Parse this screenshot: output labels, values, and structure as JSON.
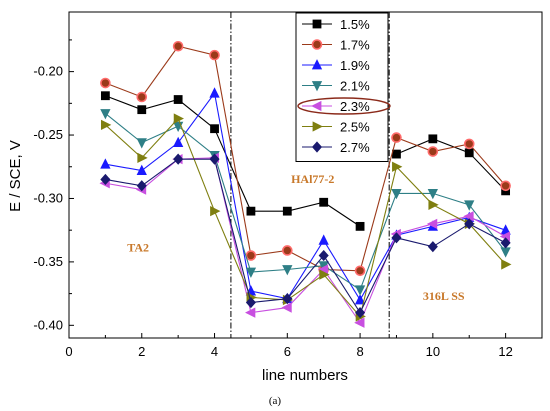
{
  "chart_data": {
    "type": "line",
    "title": "",
    "xlabel": "line numbers",
    "ylabel": "E / SCE, V",
    "xlim": [
      0,
      13
    ],
    "ylim": [
      -0.41,
      -0.153
    ],
    "x_ticks": [
      0,
      2,
      4,
      6,
      8,
      10,
      12
    ],
    "y_ticks": [
      -0.4,
      -0.35,
      -0.3,
      -0.25,
      -0.2
    ],
    "x_tick_labels": [
      "0",
      "2",
      "4",
      "6",
      "8",
      "10",
      "12"
    ],
    "y_tick_labels": [
      "-0.40",
      "-0.35",
      "-0.30",
      "-0.25",
      "-0.20"
    ],
    "grid": false,
    "legend_position": "top-center",
    "divider_lines_x": [
      4.45,
      8.8
    ],
    "region_labels": [
      {
        "text": "TA2",
        "x": 1.9,
        "y": -0.342
      },
      {
        "text": "HAl77-2",
        "x": 6.7,
        "y": -0.288
      },
      {
        "text": "316L SS",
        "x": 10.3,
        "y": -0.38
      }
    ],
    "legend_highlight": "2.3%",
    "caption": "(a)",
    "series": [
      {
        "name": "1.5%",
        "color": "#000000",
        "marker": "square",
        "x": [
          1,
          2,
          3,
          4,
          5,
          6,
          7,
          8,
          9,
          10,
          11,
          12
        ],
        "y": [
          -0.219,
          -0.23,
          -0.222,
          -0.245,
          -0.31,
          -0.31,
          -0.303,
          -0.322,
          -0.265,
          -0.253,
          -0.264,
          -0.294
        ],
        "segments": [
          [
            0,
            7
          ],
          [
            8,
            11
          ]
        ]
      },
      {
        "name": "1.7%",
        "color": "#9b3a1a",
        "marker": "circle",
        "x": [
          1,
          2,
          3,
          4,
          5,
          6,
          7,
          8,
          9,
          10,
          11,
          12
        ],
        "y": [
          -0.209,
          -0.22,
          -0.18,
          -0.187,
          -0.345,
          -0.341,
          -0.356,
          -0.357,
          -0.252,
          -0.263,
          -0.257,
          -0.29
        ]
      },
      {
        "name": "1.9%",
        "color": "#1a1aff",
        "marker": "triangle-up",
        "x": [
          1,
          2,
          3,
          4,
          5,
          6,
          7,
          8,
          9,
          10,
          11,
          12
        ],
        "y": [
          -0.273,
          -0.278,
          -0.256,
          -0.217,
          -0.373,
          -0.379,
          -0.333,
          -0.38,
          -0.329,
          -0.322,
          -0.315,
          -0.325
        ]
      },
      {
        "name": "2.1%",
        "color": "#2e7f86",
        "marker": "triangle-down",
        "x": [
          1,
          2,
          3,
          4,
          5,
          6,
          7,
          8,
          9,
          10,
          11,
          12
        ],
        "y": [
          -0.233,
          -0.256,
          -0.243,
          -0.266,
          -0.358,
          -0.356,
          -0.353,
          -0.372,
          -0.296,
          -0.296,
          -0.305,
          -0.342
        ]
      },
      {
        "name": "2.3%",
        "color": "#c84fe0",
        "marker": "triangle-left",
        "x": [
          1,
          2,
          3,
          4,
          5,
          6,
          7,
          8,
          9,
          10,
          11,
          12
        ],
        "y": [
          -0.288,
          -0.293,
          -0.269,
          -0.268,
          -0.39,
          -0.386,
          -0.356,
          -0.398,
          -0.328,
          -0.32,
          -0.314,
          -0.33
        ]
      },
      {
        "name": "2.5%",
        "color": "#7f7f10",
        "marker": "triangle-right",
        "x": [
          1,
          2,
          3,
          4,
          5,
          6,
          7,
          8,
          9,
          10,
          11,
          12
        ],
        "y": [
          -0.242,
          -0.268,
          -0.237,
          -0.31,
          -0.378,
          -0.38,
          -0.36,
          -0.393,
          -0.275,
          -0.305,
          -0.32,
          -0.352
        ]
      },
      {
        "name": "2.7%",
        "color": "#1a1a6e",
        "marker": "diamond",
        "x": [
          1,
          2,
          3,
          4,
          5,
          6,
          7,
          8,
          9,
          10,
          11,
          12
        ],
        "y": [
          -0.285,
          -0.29,
          -0.269,
          -0.269,
          -0.382,
          -0.379,
          -0.345,
          -0.39,
          -0.331,
          -0.338,
          -0.32,
          -0.335
        ]
      }
    ]
  }
}
